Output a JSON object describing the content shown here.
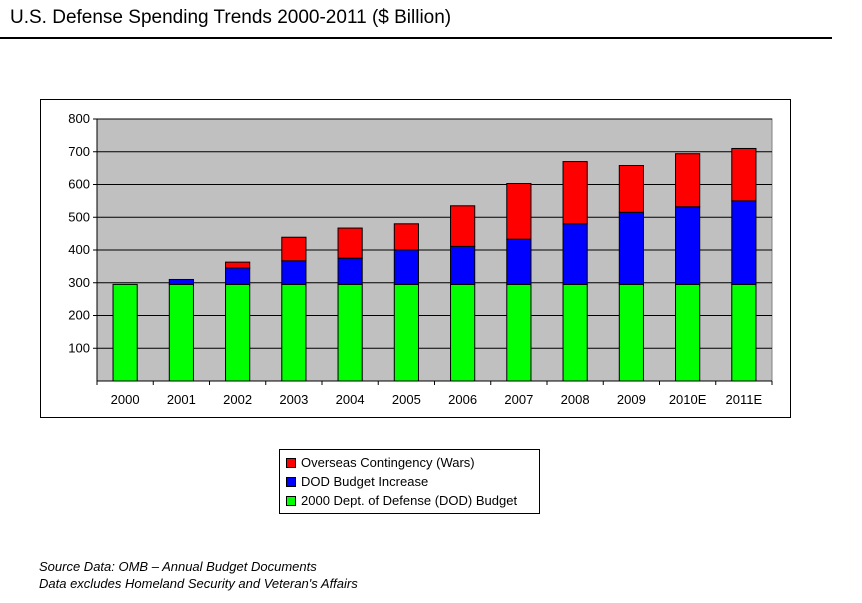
{
  "title": "U.S. Defense Spending Trends 2000-2011 ($ Billion)",
  "footnotes": [
    "Source Data: OMB – Annual Budget Documents",
    "Data excludes Homeland Security and Veteran's Affairs"
  ],
  "chart_data": {
    "type": "bar",
    "stacked": true,
    "title": "U.S. Defense Spending Trends 2000-2011 ($ Billion)",
    "xlabel": "",
    "ylabel": "",
    "ylim": [
      0,
      800
    ],
    "yticks": [
      100,
      200,
      300,
      400,
      500,
      600,
      700,
      800
    ],
    "grid": true,
    "legend_position": "below",
    "plot_background": "#c0c0c0",
    "categories": [
      "2000",
      "2001",
      "2002",
      "2003",
      "2004",
      "2005",
      "2006",
      "2007",
      "2008",
      "2009",
      "2010E",
      "2011E"
    ],
    "series": [
      {
        "name": "2000 Dept. of Defense (DOD) Budget",
        "color": "#00ff00",
        "values": [
          295,
          295,
          295,
          295,
          295,
          295,
          295,
          295,
          295,
          295,
          295,
          295
        ]
      },
      {
        "name": "DOD Budget Increase",
        "color": "#0000ff",
        "values": [
          0,
          15,
          50,
          72,
          80,
          105,
          116,
          138,
          185,
          220,
          237,
          255
        ]
      },
      {
        "name": "Overseas Contingency (Wars)",
        "color": "#ff0000",
        "values": [
          0,
          0,
          18,
          72,
          92,
          80,
          124,
          170,
          190,
          143,
          162,
          160
        ]
      }
    ],
    "legend_order": [
      "Overseas Contingency (Wars)",
      "DOD Budget Increase",
      "2000 Dept. of Defense (DOD) Budget"
    ]
  }
}
